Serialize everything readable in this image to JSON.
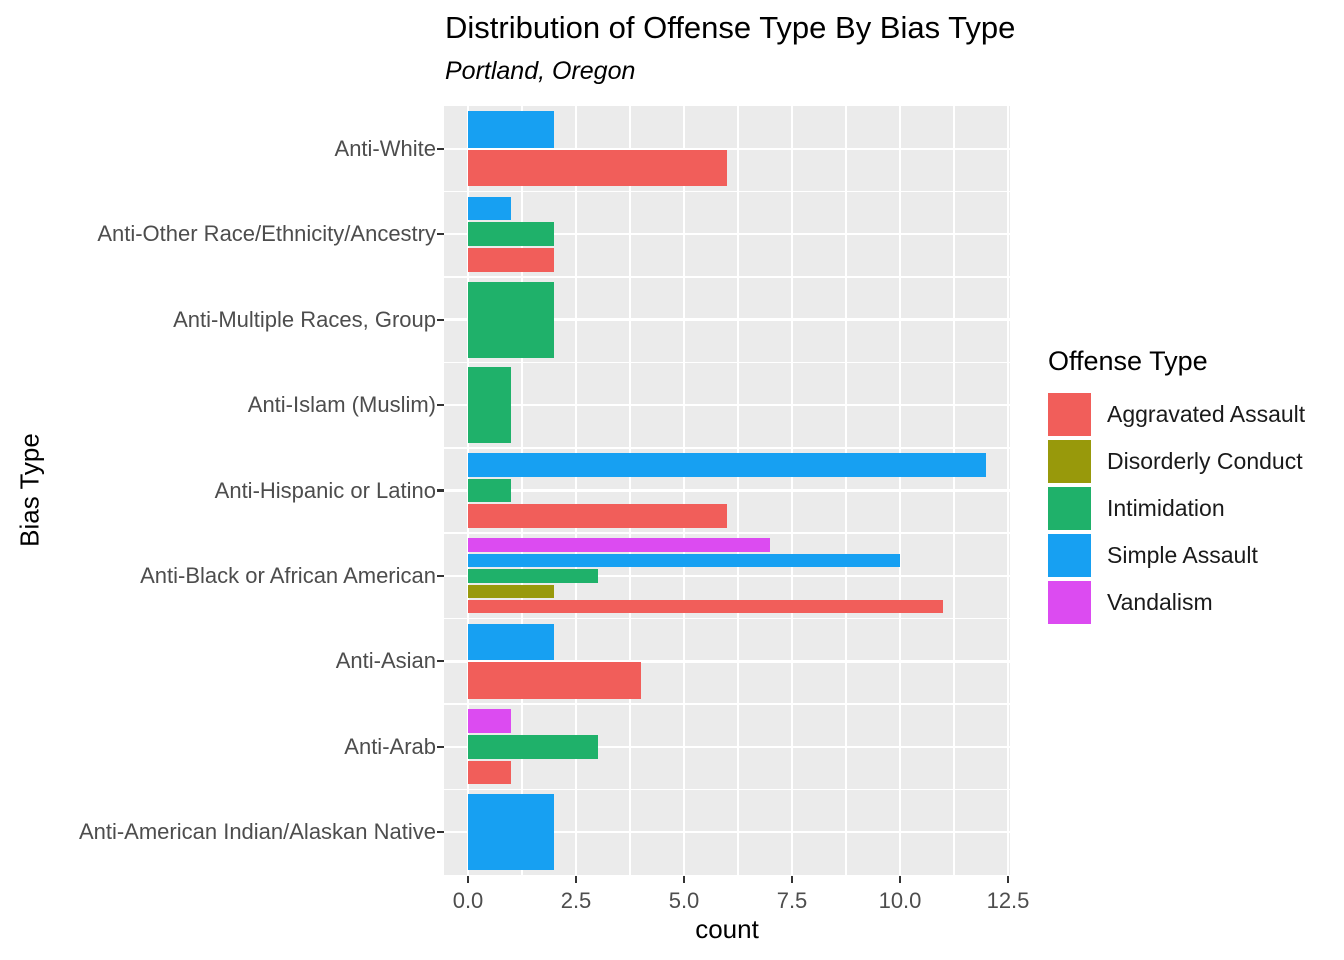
{
  "title": "Distribution of Offense Type By Bias Type",
  "subtitle": "Portland, Oregon",
  "legend": {
    "title": "Offense Type",
    "position": "right",
    "items": [
      {
        "label": "Aggravated Assault",
        "color": "#F15E5A"
      },
      {
        "label": "Disorderly Conduct",
        "color": "#98990B"
      },
      {
        "label": "Intimidation",
        "color": "#1FB16A"
      },
      {
        "label": "Simple Assault",
        "color": "#17A0F2"
      },
      {
        "label": "Vandalism",
        "color": "#DC4BF1"
      }
    ]
  },
  "chart_data": {
    "type": "bar",
    "orientation": "horizontal",
    "title": "Distribution of Offense Type By Bias Type",
    "subtitle": "Portland, Oregon",
    "xlabel": "count",
    "ylabel": "Bias Type",
    "xlim": [
      0,
      12.5
    ],
    "grid": true,
    "panel_background": "#EBEBEB",
    "grid_color": "#FFFFFF",
    "axis_text_color": "#4D4D4D",
    "x_major_ticks": [
      0,
      2.5,
      5,
      7.5,
      10,
      12.5
    ],
    "x_tick_labels": [
      "0.0",
      "2.5",
      "5.0",
      "7.5",
      "10.0",
      "12.5"
    ],
    "x_minor_ticks": [
      1.25,
      3.75,
      6.25,
      8.75,
      11.25
    ],
    "series_colors": {
      "Aggravated Assault": "#F15E5A",
      "Disorderly Conduct": "#98990B",
      "Intimidation": "#1FB16A",
      "Simple Assault": "#17A0F2",
      "Vandalism": "#DC4BF1"
    },
    "categories": [
      {
        "label": "Anti-White",
        "bars": [
          {
            "series": "Simple Assault",
            "value": 2
          },
          {
            "series": "Aggravated Assault",
            "value": 6
          }
        ]
      },
      {
        "label": "Anti-Other Race/Ethnicity/Ancestry",
        "bars": [
          {
            "series": "Simple Assault",
            "value": 1
          },
          {
            "series": "Intimidation",
            "value": 2
          },
          {
            "series": "Aggravated Assault",
            "value": 2
          }
        ]
      },
      {
        "label": "Anti-Multiple Races, Group",
        "bars": [
          {
            "series": "Intimidation",
            "value": 2
          }
        ]
      },
      {
        "label": "Anti-Islam (Muslim)",
        "bars": [
          {
            "series": "Intimidation",
            "value": 1
          }
        ]
      },
      {
        "label": "Anti-Hispanic or Latino",
        "bars": [
          {
            "series": "Simple Assault",
            "value": 12
          },
          {
            "series": "Intimidation",
            "value": 1
          },
          {
            "series": "Aggravated Assault",
            "value": 6
          }
        ]
      },
      {
        "label": "Anti-Black or African American",
        "bars": [
          {
            "series": "Vandalism",
            "value": 7
          },
          {
            "series": "Simple Assault",
            "value": 10
          },
          {
            "series": "Intimidation",
            "value": 3
          },
          {
            "series": "Disorderly Conduct",
            "value": 2
          },
          {
            "series": "Aggravated Assault",
            "value": 11
          }
        ]
      },
      {
        "label": "Anti-Asian",
        "bars": [
          {
            "series": "Simple Assault",
            "value": 2
          },
          {
            "series": "Aggravated Assault",
            "value": 4
          }
        ]
      },
      {
        "label": "Anti-Arab",
        "bars": [
          {
            "series": "Vandalism",
            "value": 1
          },
          {
            "series": "Intimidation",
            "value": 3
          },
          {
            "series": "Aggravated Assault",
            "value": 1
          }
        ]
      },
      {
        "label": "Anti-American Indian/Alaskan Native",
        "bars": [
          {
            "series": "Simple Assault",
            "value": 2
          }
        ]
      }
    ]
  }
}
